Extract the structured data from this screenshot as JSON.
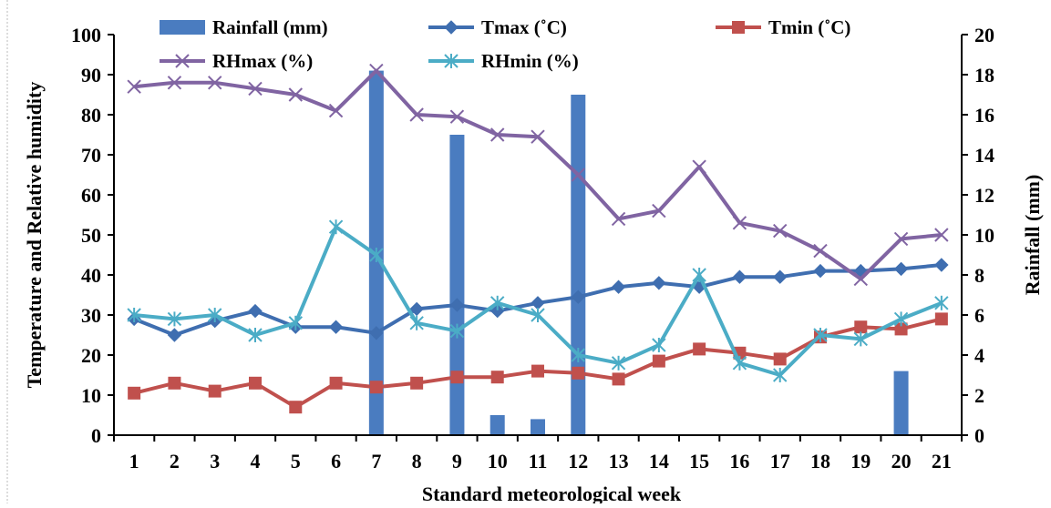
{
  "chart_data": {
    "type": "bar+line",
    "xlabel": "Standard meteorological week",
    "ylabel_left": "Temperature and Relative humidity",
    "ylabel_right": "Rainfall (mm)",
    "ylim_left": [
      0,
      100
    ],
    "ylim_right": [
      0,
      20
    ],
    "yticks_left": [
      "0",
      "10",
      "20",
      "30",
      "40",
      "50",
      "60",
      "70",
      "80",
      "90",
      "100"
    ],
    "yticks_right": [
      "0",
      "2",
      "4",
      "6",
      "8",
      "10",
      "12",
      "14",
      "16",
      "18",
      "20"
    ],
    "categories": [
      "1",
      "2",
      "3",
      "4",
      "5",
      "6",
      "7",
      "8",
      "9",
      "10",
      "11",
      "12",
      "13",
      "14",
      "15",
      "16",
      "17",
      "18",
      "19",
      "20",
      "21"
    ],
    "grid": false,
    "legend_position": "top",
    "series": [
      {
        "name": "Rainfall (mm)",
        "kind": "bar",
        "axis": "right",
        "color": "#4a7cc0",
        "values": [
          0,
          0,
          0,
          0,
          0,
          0,
          18.2,
          0,
          15,
          1,
          0.8,
          17,
          0,
          0,
          0,
          0,
          0,
          0,
          0,
          3.2,
          0
        ]
      },
      {
        "name": "Tmax  (˚C)",
        "kind": "line",
        "axis": "left",
        "marker": "diamond",
        "color": "#3f6eb0",
        "values": [
          29,
          25,
          28.5,
          31,
          27,
          27,
          25.5,
          31.5,
          32.5,
          31,
          33,
          34.5,
          37,
          38,
          37,
          39.5,
          39.5,
          41,
          41,
          41.5,
          42.5
        ]
      },
      {
        "name": "Tmin  (˚C)",
        "kind": "line",
        "axis": "left",
        "marker": "square",
        "color": "#c0504d",
        "values": [
          10.5,
          13,
          11,
          13,
          7,
          13,
          12,
          13,
          14.5,
          14.5,
          16,
          15.5,
          14,
          18.5,
          21.5,
          20.5,
          19,
          24.5,
          27,
          26.5,
          29
        ]
      },
      {
        "name": "RHmax (%)",
        "kind": "line",
        "axis": "left",
        "marker": "x",
        "color": "#8064a2",
        "values": [
          87,
          88,
          88,
          86.5,
          85,
          81,
          91,
          80,
          79.5,
          75,
          74.5,
          65,
          54,
          56,
          67,
          53,
          51,
          46,
          39,
          49,
          50
        ]
      },
      {
        "name": "RHmin (%)",
        "kind": "line",
        "axis": "left",
        "marker": "asterisk",
        "color": "#4bacc6",
        "values": [
          30,
          29,
          30,
          25,
          28,
          52,
          45,
          28,
          26,
          33,
          30,
          20,
          18,
          22.5,
          40,
          18,
          15,
          25,
          24,
          29,
          33
        ]
      }
    ]
  }
}
